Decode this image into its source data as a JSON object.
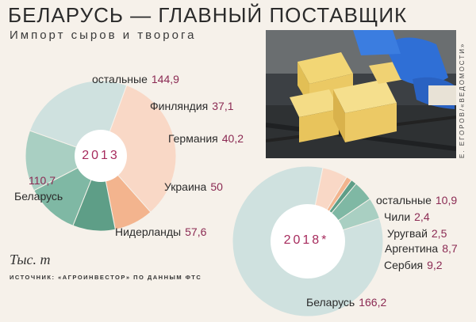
{
  "header": {
    "title": "БЕЛАРУСЬ — ГЛАВНЫЙ ПОСТАВЩИК",
    "subtitle": "Импорт сыров и творога"
  },
  "photo": {
    "credit": "Е. ЕГОРОВ/«ВЕДОМОСТИ»"
  },
  "footer": {
    "unit": "Тыс. т",
    "source": "ИСТОЧНИК: «АГРОИНВЕСТОР» ПО ДАННЫМ ФТС"
  },
  "chart_data": [
    {
      "type": "pie",
      "title": "2013",
      "categories": [
        "Беларусь",
        "Нидерланды",
        "Украина",
        "Германия",
        "Финляндия",
        "остальные"
      ],
      "values": [
        110.7,
        57.6,
        50,
        40.2,
        37.1,
        144.9
      ],
      "value_labels": [
        "110,7",
        "57,6",
        "50",
        "40,2",
        "37,1",
        "144,9"
      ],
      "colors": [
        "#cfe1df",
        "#a9cfc2",
        "#7fb8a4",
        "#5e9e87",
        "#f3b48e",
        "#f9d8c6"
      ]
    },
    {
      "type": "pie",
      "title": "2018*",
      "categories": [
        "Беларусь",
        "Сербия",
        "Аргентина",
        "Уругвай",
        "Чили",
        "остальные"
      ],
      "values": [
        166.2,
        9.2,
        8.7,
        2.5,
        2.4,
        10.9
      ],
      "value_labels": [
        "166,2",
        "9,2",
        "8,7",
        "2,5",
        "2,4",
        "10,9"
      ],
      "colors": [
        "#cfe1df",
        "#a9cfc2",
        "#7fb8a4",
        "#5e9e87",
        "#f3b48e",
        "#f9d8c6"
      ]
    }
  ]
}
